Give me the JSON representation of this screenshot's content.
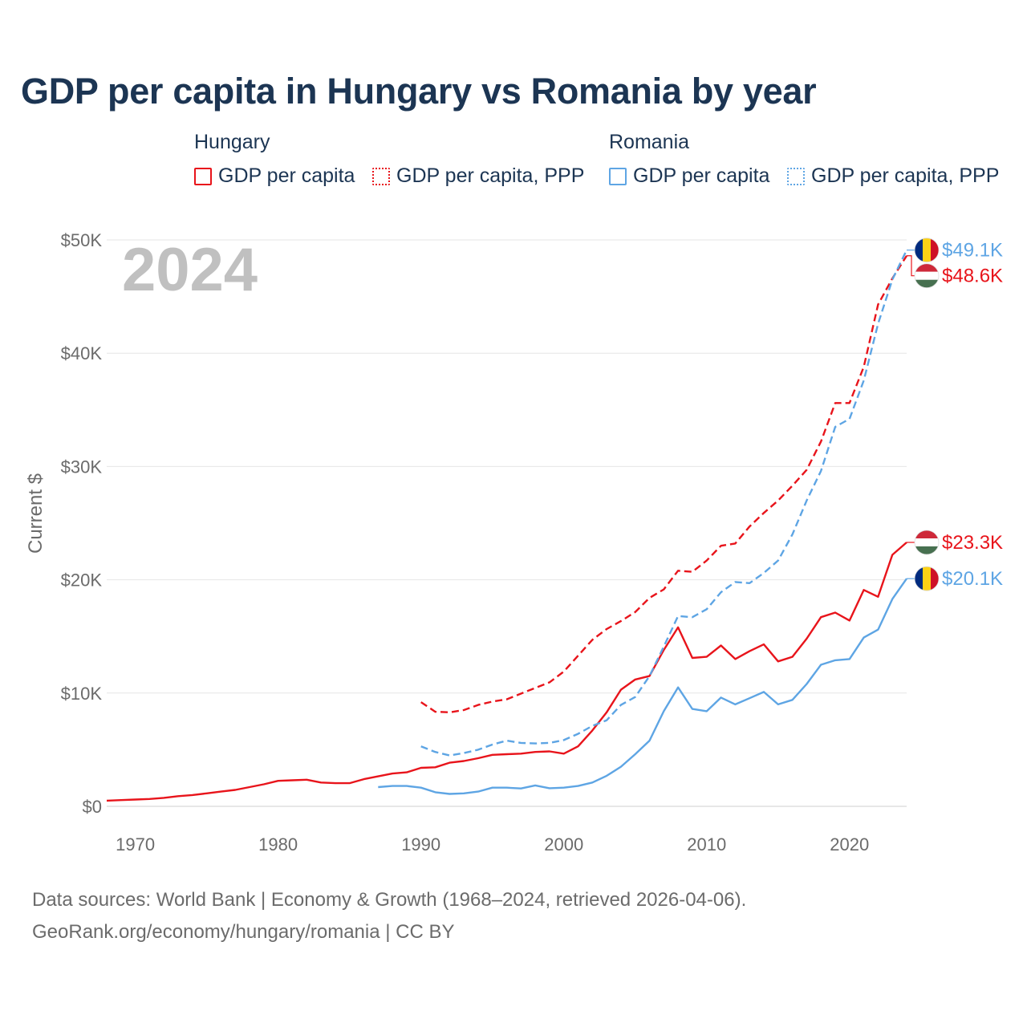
{
  "title": "GDP per capita in Hungary vs Romania by year",
  "legend": {
    "hungary": {
      "country": "Hungary",
      "gdp_label": "GDP per capita",
      "ppp_label": "GDP per capita, PPP",
      "color": "#e8141b"
    },
    "romania": {
      "country": "Romania",
      "gdp_label": "GDP per capita",
      "ppp_label": "GDP per capita, PPP",
      "color": "#5ea5e4"
    }
  },
  "footer": {
    "line1": "Data sources: World Bank | Economy & Growth (1968–2024, retrieved 2026-04-06).",
    "line2": "GeoRank.org/economy/hungary/romania | CC BY"
  },
  "chart_data": {
    "type": "line",
    "title": "GDP per capita in Hungary vs Romania by year",
    "xlabel": "",
    "ylabel": "Current $",
    "xlim": [
      1968,
      2024
    ],
    "ylim": [
      0,
      50000
    ],
    "x_ticks": [
      1970,
      1980,
      1990,
      2000,
      2010,
      2020
    ],
    "y_ticks": [
      0,
      10000,
      20000,
      30000,
      40000,
      50000
    ],
    "y_tick_labels": [
      "$0",
      "$10K",
      "$20K",
      "$30K",
      "$40K",
      "$50K"
    ],
    "watermark_year": "2024",
    "series": [
      {
        "name": "Hungary GDP per capita",
        "country": "Hungary",
        "style": "solid",
        "color": "#e8141b",
        "end_label": "$23.3K",
        "end_flag": "hungary",
        "x": [
          1968,
          1969,
          1970,
          1971,
          1972,
          1973,
          1974,
          1975,
          1976,
          1977,
          1978,
          1979,
          1980,
          1981,
          1982,
          1983,
          1984,
          1985,
          1986,
          1987,
          1988,
          1989,
          1990,
          1991,
          1992,
          1993,
          1994,
          1995,
          1996,
          1997,
          1998,
          1999,
          2000,
          2001,
          2002,
          2003,
          2004,
          2005,
          2006,
          2007,
          2008,
          2009,
          2010,
          2011,
          2012,
          2013,
          2014,
          2015,
          2016,
          2017,
          2018,
          2019,
          2020,
          2021,
          2022,
          2023,
          2024
        ],
        "y": [
          500,
          550,
          600,
          650,
          750,
          900,
          1000,
          1150,
          1300,
          1450,
          1700,
          1950,
          2250,
          2300,
          2350,
          2100,
          2050,
          2050,
          2400,
          2650,
          2900,
          3000,
          3400,
          3450,
          3850,
          4000,
          4250,
          4550,
          4600,
          4650,
          4800,
          4850,
          4650,
          5300,
          6700,
          8300,
          10300,
          11200,
          11500,
          13800,
          15800,
          13100,
          13200,
          14200,
          13000,
          13700,
          14300,
          12800,
          13200,
          14800,
          16700,
          17100,
          16400,
          19100,
          18500,
          22200,
          23300
        ]
      },
      {
        "name": "Hungary GDP per capita, PPP",
        "country": "Hungary",
        "style": "dashed",
        "color": "#e8141b",
        "end_label": "$48.6K",
        "end_flag": "hungary",
        "x": [
          1990,
          1991,
          1992,
          1993,
          1994,
          1995,
          1996,
          1997,
          1998,
          1999,
          2000,
          2001,
          2002,
          2003,
          2004,
          2005,
          2006,
          2007,
          2008,
          2009,
          2010,
          2011,
          2012,
          2013,
          2014,
          2015,
          2016,
          2017,
          2018,
          2019,
          2020,
          2021,
          2022,
          2023,
          2024
        ],
        "y": [
          9200,
          8350,
          8300,
          8500,
          8950,
          9250,
          9450,
          9950,
          10450,
          10950,
          11900,
          13300,
          14700,
          15650,
          16350,
          17150,
          18400,
          19150,
          20800,
          20700,
          21700,
          23000,
          23200,
          24700,
          25900,
          27000,
          28300,
          29700,
          32200,
          35600,
          35600,
          38800,
          44300,
          46600,
          48600
        ]
      },
      {
        "name": "Romania GDP per capita",
        "country": "Romania",
        "style": "solid",
        "color": "#5ea5e4",
        "end_label": "$20.1K",
        "end_flag": "romania",
        "x": [
          1987,
          1988,
          1989,
          1990,
          1991,
          1992,
          1993,
          1994,
          1995,
          1996,
          1997,
          1998,
          1999,
          2000,
          2001,
          2002,
          2003,
          2004,
          2005,
          2006,
          2007,
          2008,
          2009,
          2010,
          2011,
          2012,
          2013,
          2014,
          2015,
          2016,
          2017,
          2018,
          2019,
          2020,
          2021,
          2022,
          2023,
          2024
        ],
        "y": [
          1700,
          1800,
          1800,
          1650,
          1250,
          1100,
          1150,
          1300,
          1650,
          1650,
          1580,
          1850,
          1600,
          1650,
          1800,
          2100,
          2700,
          3500,
          4600,
          5800,
          8400,
          10500,
          8600,
          8400,
          9600,
          9000,
          9550,
          10100,
          9000,
          9400,
          10800,
          12500,
          12900,
          13000,
          14900,
          15600,
          18300,
          20100
        ]
      },
      {
        "name": "Romania GDP per capita, PPP",
        "country": "Romania",
        "style": "dashed",
        "color": "#5ea5e4",
        "end_label": "$49.1K",
        "end_flag": "romania",
        "x": [
          1990,
          1991,
          1992,
          1993,
          1994,
          1995,
          1996,
          1997,
          1998,
          1999,
          2000,
          2001,
          2002,
          2003,
          2004,
          2005,
          2006,
          2007,
          2008,
          2009,
          2010,
          2011,
          2012,
          2013,
          2014,
          2015,
          2016,
          2017,
          2018,
          2019,
          2020,
          2021,
          2022,
          2023,
          2024
        ],
        "y": [
          5300,
          4800,
          4500,
          4700,
          5000,
          5450,
          5800,
          5600,
          5550,
          5600,
          5850,
          6400,
          7100,
          7600,
          8950,
          9650,
          11500,
          14100,
          16800,
          16700,
          17400,
          18900,
          19800,
          19700,
          20600,
          21700,
          24000,
          27000,
          29600,
          33500,
          34200,
          37600,
          42600,
          46500,
          49100
        ]
      }
    ]
  }
}
